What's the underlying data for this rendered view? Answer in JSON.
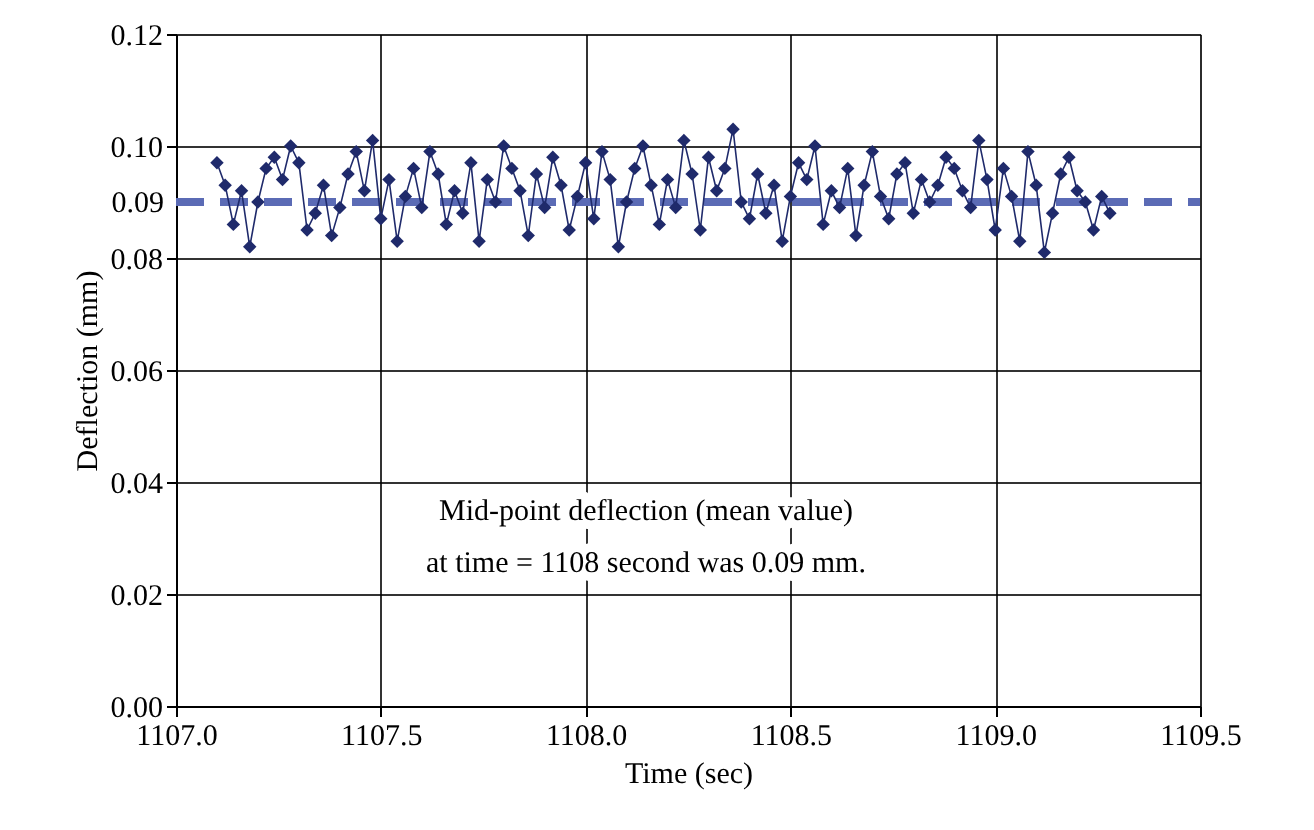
{
  "chart_data": {
    "type": "line",
    "xlabel": "Time (sec)",
    "ylabel": "Deflection (mm)",
    "x": [
      1107.1,
      1107.12,
      1107.14,
      1107.16,
      1107.18,
      1107.2,
      1107.22,
      1107.24,
      1107.26,
      1107.28,
      1107.3,
      1107.32,
      1107.34,
      1107.36,
      1107.38,
      1107.4,
      1107.42,
      1107.44,
      1107.46,
      1107.48,
      1107.5,
      1107.52,
      1107.54,
      1107.56,
      1107.58,
      1107.6,
      1107.62,
      1107.64,
      1107.66,
      1107.68,
      1107.7,
      1107.72,
      1107.74,
      1107.76,
      1107.78,
      1107.8,
      1107.82,
      1107.84,
      1107.86,
      1107.88,
      1107.9,
      1107.92,
      1107.94,
      1107.96,
      1107.98,
      1108.0,
      1108.02,
      1108.04,
      1108.06,
      1108.08,
      1108.1,
      1108.12,
      1108.14,
      1108.16,
      1108.18,
      1108.2,
      1108.22,
      1108.24,
      1108.26,
      1108.28,
      1108.3,
      1108.32,
      1108.34,
      1108.36,
      1108.38,
      1108.4,
      1108.42,
      1108.44,
      1108.46,
      1108.48,
      1108.5,
      1108.52,
      1108.54,
      1108.56,
      1108.58,
      1108.6,
      1108.62,
      1108.64,
      1108.66,
      1108.68,
      1108.7,
      1108.72,
      1108.74,
      1108.76,
      1108.78,
      1108.8,
      1108.82,
      1108.84,
      1108.86,
      1108.88,
      1108.9,
      1108.92,
      1108.94,
      1108.96,
      1108.98,
      1109.0,
      1109.02,
      1109.04,
      1109.06,
      1109.08,
      1109.1,
      1109.12,
      1109.14,
      1109.16,
      1109.18,
      1109.2,
      1109.22,
      1109.24,
      1109.26,
      1109.28
    ],
    "series": [
      {
        "color": "#1f2a6b",
        "values": [
          0.097,
          0.093,
          0.086,
          0.092,
          0.082,
          0.09,
          0.096,
          0.098,
          0.094,
          0.1,
          0.097,
          0.085,
          0.088,
          0.093,
          0.084,
          0.089,
          0.095,
          0.099,
          0.092,
          0.101,
          0.087,
          0.094,
          0.083,
          0.091,
          0.096,
          0.089,
          0.099,
          0.095,
          0.086,
          0.092,
          0.088,
          0.097,
          0.083,
          0.094,
          0.09,
          0.1,
          0.096,
          0.092,
          0.084,
          0.095,
          0.089,
          0.098,
          0.093,
          0.085,
          0.091,
          0.097,
          0.087,
          0.099,
          0.094,
          0.082,
          0.09,
          0.096,
          0.1,
          0.093,
          0.086,
          0.094,
          0.089,
          0.101,
          0.095,
          0.085,
          0.098,
          0.092,
          0.096,
          0.103,
          0.09,
          0.087,
          0.095,
          0.088,
          0.093,
          0.083,
          0.091,
          0.097,
          0.094,
          0.1,
          0.086,
          0.092,
          0.089,
          0.096,
          0.084,
          0.093,
          0.099,
          0.091,
          0.087,
          0.095,
          0.097,
          0.088,
          0.094,
          0.09,
          0.093,
          0.098,
          0.096,
          0.092,
          0.089,
          0.101,
          0.094,
          0.085,
          0.096,
          0.091,
          0.083,
          0.099,
          0.093,
          0.081,
          0.088,
          0.095,
          0.098,
          0.092,
          0.09,
          0.085,
          0.091,
          0.088
        ]
      }
    ],
    "marker": "diamond",
    "line_style": "solid",
    "grid": true,
    "xlim": [
      1107.0,
      1109.5
    ],
    "xticks": [
      {
        "value": 1107.0,
        "label": "1107.0"
      },
      {
        "value": 1107.5,
        "label": "1107.5"
      },
      {
        "value": 1108.0,
        "label": "1108.0"
      },
      {
        "value": 1108.5,
        "label": "1108.5"
      },
      {
        "value": 1109.0,
        "label": "1109.0"
      },
      {
        "value": 1109.5,
        "label": "1109.5"
      }
    ],
    "ylim": [
      0,
      0.12
    ],
    "yticks": [
      {
        "value": 0,
        "label": "0.00"
      },
      {
        "value": 0.02,
        "label": "0.02"
      },
      {
        "value": 0.04,
        "label": "0.04"
      },
      {
        "value": 0.06,
        "label": "0.06"
      },
      {
        "value": 0.08,
        "label": "0.08"
      },
      {
        "value": 0.1,
        "label": "0.10"
      },
      {
        "value": 0.12,
        "label": "0.12"
      }
    ],
    "ref_lines": [
      {
        "axis": "y",
        "value": 0.09,
        "label": "0.09",
        "color": "#5b6bb5",
        "line_style": "dashed"
      }
    ],
    "annotations": [
      "Mid-point deflection (mean value)",
      "at time = 1108 second was 0.09 mm."
    ]
  }
}
